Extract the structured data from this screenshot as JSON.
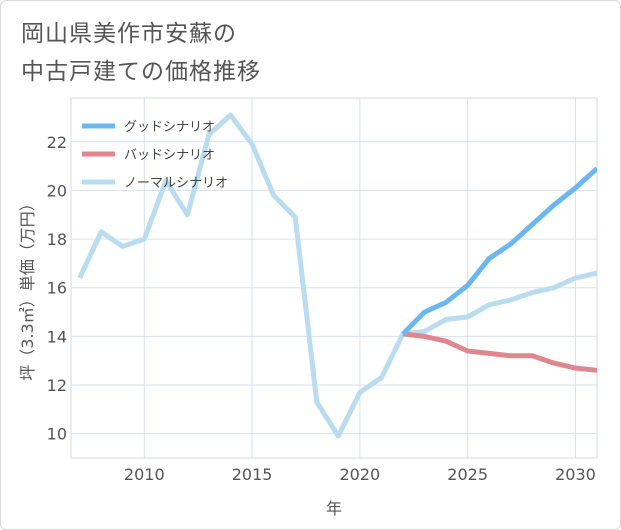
{
  "title": {
    "line1": "岡山県美作市安蘇の",
    "line2": "中古戸建ての価格推移"
  },
  "chart_data": {
    "type": "line",
    "xlabel": "年",
    "ylabel": "坪（3.3㎡）単価（万円）",
    "xlim": [
      2006.6,
      2031
    ],
    "ylim": [
      9.0,
      23.8
    ],
    "xticks": [
      2010,
      2015,
      2020,
      2025,
      2030
    ],
    "yticks": [
      10,
      12,
      14,
      16,
      18,
      20,
      22
    ],
    "grid": true,
    "legend_position": "top-left",
    "series": [
      {
        "name": "グッドシナリオ",
        "color": "#6cb8ee",
        "x": [
          2022,
          2023,
          2024,
          2025,
          2026,
          2027,
          2028,
          2029,
          2030,
          2031
        ],
        "values": [
          14.1,
          15.0,
          15.4,
          16.1,
          17.2,
          17.8,
          18.6,
          19.4,
          20.1,
          20.9
        ]
      },
      {
        "name": "バッドシナリオ",
        "color": "#e0868e",
        "x": [
          2022,
          2023,
          2024,
          2025,
          2026,
          2027,
          2028,
          2029,
          2030,
          2031
        ],
        "values": [
          14.1,
          14.0,
          13.8,
          13.4,
          13.3,
          13.2,
          13.2,
          12.9,
          12.7,
          12.6
        ]
      },
      {
        "name": "ノーマルシナリオ",
        "color": "#b9dcee",
        "x": [
          2007,
          2008,
          2009,
          2010,
          2011,
          2012,
          2013,
          2014,
          2015,
          2016,
          2017,
          2018,
          2019,
          2020,
          2021,
          2022,
          2023,
          2024,
          2025,
          2026,
          2027,
          2028,
          2029,
          2030,
          2031
        ],
        "values": [
          16.4,
          18.3,
          17.7,
          18.0,
          20.4,
          19.0,
          22.3,
          23.1,
          21.9,
          19.8,
          18.9,
          11.3,
          9.9,
          11.7,
          12.3,
          14.1,
          14.2,
          14.7,
          14.8,
          15.3,
          15.5,
          15.8,
          16.0,
          16.4,
          16.6
        ]
      }
    ]
  }
}
